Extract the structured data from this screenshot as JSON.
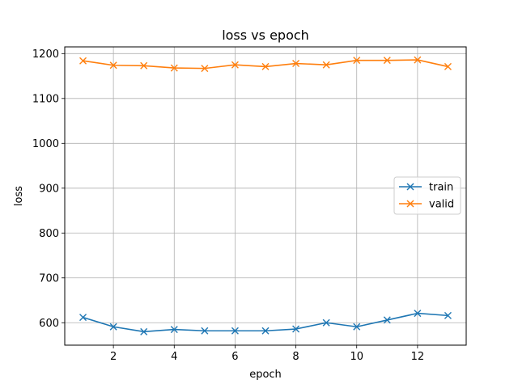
{
  "chart_data": {
    "type": "line",
    "title": "loss vs epoch",
    "xlabel": "epoch",
    "ylabel": "loss",
    "xlim": [
      0.4,
      13.6
    ],
    "ylim": [
      550,
      1215
    ],
    "xticks": [
      2,
      4,
      6,
      8,
      10,
      12
    ],
    "yticks": [
      600,
      700,
      800,
      900,
      1000,
      1100,
      1200
    ],
    "grid": true,
    "legend_position": "center-right",
    "marker": "x",
    "x": [
      1,
      2,
      3,
      4,
      5,
      6,
      7,
      8,
      9,
      10,
      11,
      12,
      13
    ],
    "series": [
      {
        "name": "train",
        "color": "#1f77b4",
        "values": [
          612,
          591,
          580,
          585,
          582,
          582,
          582,
          586,
          600,
          591,
          606,
          621,
          616
        ]
      },
      {
        "name": "valid",
        "color": "#ff7f0e",
        "values": [
          1184,
          1174,
          1173,
          1168,
          1167,
          1175,
          1171,
          1178,
          1175,
          1185,
          1185,
          1186,
          1171
        ]
      }
    ]
  }
}
